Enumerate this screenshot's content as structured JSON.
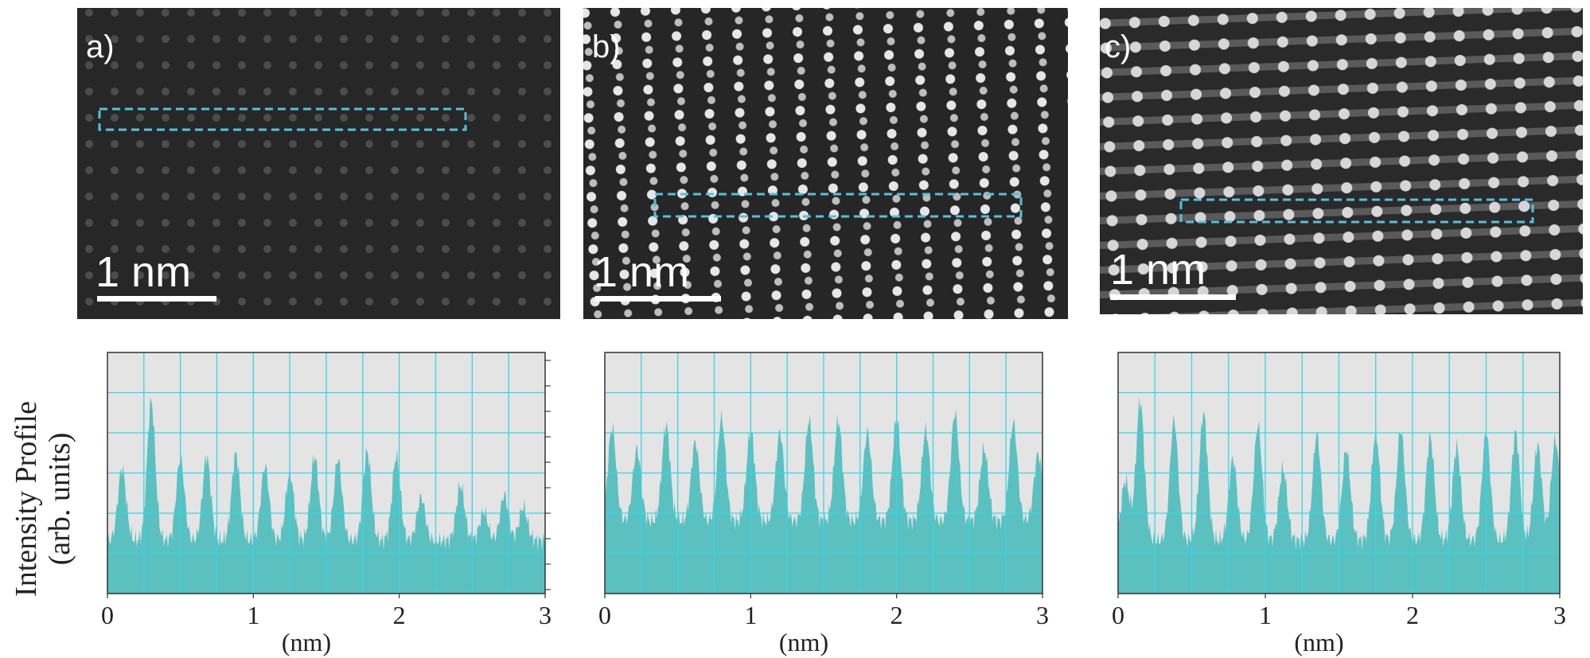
{
  "figure": {
    "ylabel_line1": "Intensity Profile",
    "ylabel_line2": "(arb. units)",
    "accent_color": "#5bc0c0",
    "box_color": "#4fc3df",
    "grid_color": "#34d6e8",
    "plot_bg": "#e4e4e4",
    "panels": [
      {
        "label": "a)",
        "scale_text": "1 nm",
        "brightness": "dim"
      },
      {
        "label": "b)",
        "scale_text": "1 nm",
        "brightness": "bright"
      },
      {
        "label": "c)",
        "scale_text": "1 nm",
        "brightness": "bright"
      }
    ]
  },
  "chart_data": [
    {
      "type": "area",
      "panel": "a",
      "xlabel": "(nm)",
      "ylabel": "Intensity Profile (arb. units)",
      "xlim": [
        0,
        3
      ],
      "xticks": [
        "0",
        "1",
        "2",
        "3"
      ],
      "ylim": [
        0,
        1
      ],
      "grid": true,
      "peaks_x": [
        0.1,
        0.3,
        0.5,
        0.68,
        0.88,
        1.08,
        1.25,
        1.42,
        1.58,
        1.78,
        1.98,
        2.15,
        2.42,
        2.58,
        2.72,
        2.85
      ],
      "peaks_y": [
        0.52,
        0.8,
        0.56,
        0.57,
        0.58,
        0.53,
        0.5,
        0.57,
        0.56,
        0.59,
        0.57,
        0.4,
        0.45,
        0.34,
        0.41,
        0.36
      ],
      "baseline": 0.22
    },
    {
      "type": "area",
      "panel": "b",
      "xlabel": "(nm)",
      "xlim": [
        0,
        3
      ],
      "xticks": [
        "0",
        "1",
        "2",
        "3"
      ],
      "ylim": [
        0,
        1
      ],
      "grid": true,
      "peaks_x": [
        0.05,
        0.22,
        0.42,
        0.62,
        0.8,
        1.0,
        1.2,
        1.4,
        1.6,
        1.8,
        2.0,
        2.2,
        2.4,
        2.6,
        2.8,
        2.97
      ],
      "peaks_y": [
        0.69,
        0.6,
        0.7,
        0.63,
        0.73,
        0.68,
        0.67,
        0.72,
        0.72,
        0.67,
        0.73,
        0.68,
        0.75,
        0.6,
        0.71,
        0.58
      ],
      "baseline": 0.3
    },
    {
      "type": "area",
      "panel": "c",
      "xlabel": "(nm)",
      "xlim": [
        0,
        3
      ],
      "xticks": [
        "0",
        "1",
        "2",
        "3"
      ],
      "ylim": [
        0,
        1
      ],
      "grid": true,
      "peaks_x": [
        0.05,
        0.15,
        0.38,
        0.58,
        0.78,
        0.95,
        1.12,
        1.35,
        1.55,
        1.75,
        1.92,
        2.12,
        2.3,
        2.5,
        2.7,
        2.85,
        2.97
      ],
      "peaks_y": [
        0.47,
        0.8,
        0.72,
        0.75,
        0.56,
        0.7,
        0.52,
        0.66,
        0.6,
        0.67,
        0.68,
        0.65,
        0.61,
        0.67,
        0.67,
        0.62,
        0.64
      ],
      "baseline": 0.22
    }
  ]
}
